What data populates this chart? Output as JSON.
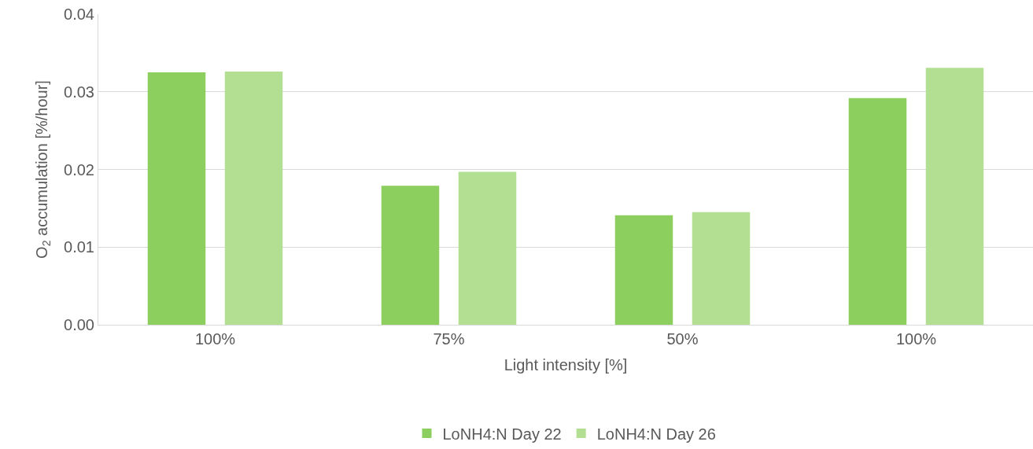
{
  "chart_data": {
    "type": "bar",
    "xlabel": "Light intensity [%]",
    "ylabel": "O$_{2}$ accumulation [%/hour]",
    "categories": [
      "100%",
      "75%",
      "50%",
      "100%"
    ],
    "series": [
      {
        "name": "LoNH4:N Day 22",
        "color": "#8ccf5e",
        "values": [
          0.0325,
          0.0179,
          0.0141,
          0.0292
        ]
      },
      {
        "name": "LoNH4:N Day 26",
        "color": "#b2df92",
        "values": [
          0.0326,
          0.0197,
          0.0145,
          0.0331
        ]
      }
    ],
    "ylim": [
      0,
      0.04
    ],
    "yticks": [
      {
        "value": 0,
        "label": "0.00"
      },
      0.01,
      0.02,
      0.03,
      0.04
    ],
    "grid": "y",
    "legend": "bottom"
  }
}
